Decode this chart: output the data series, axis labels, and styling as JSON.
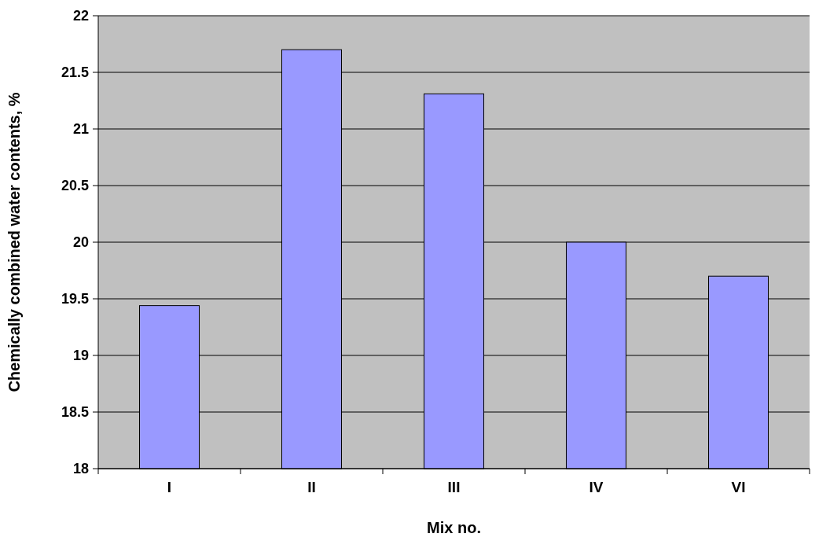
{
  "chart_data": {
    "type": "bar",
    "xlabel": "Mix no.",
    "ylabel": "Chemically combined water contents, %",
    "categories": [
      "I",
      "II",
      "III",
      "IV",
      "VI"
    ],
    "values": [
      19.44,
      21.7,
      21.31,
      20.0,
      19.7
    ],
    "color": "#9999ff",
    "ylim": [
      18,
      22
    ],
    "yticks": [
      18,
      18.5,
      19,
      19.5,
      20,
      20.5,
      21,
      21.5,
      22
    ],
    "grid": "y"
  }
}
